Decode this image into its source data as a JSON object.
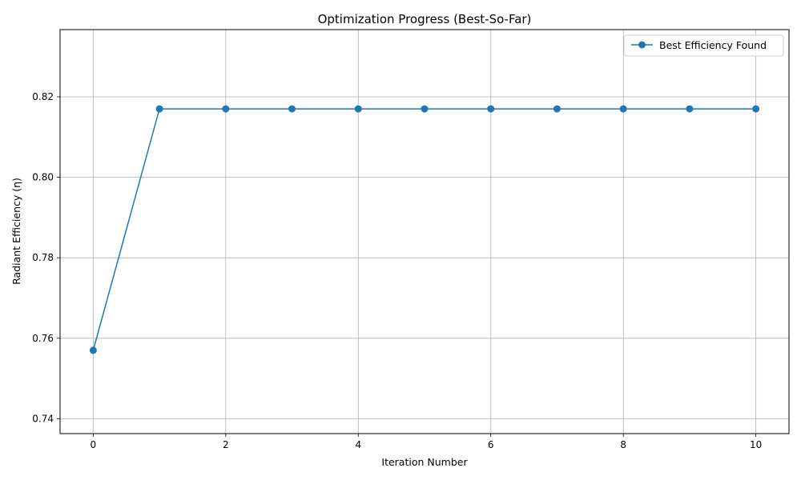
{
  "chart_data": {
    "type": "line",
    "title": "Optimization Progress (Best-So-Far)",
    "xlabel": "Iteration Number",
    "ylabel": "Radiant Efficiency (η)",
    "xlim": [
      -0.5,
      10.5
    ],
    "ylim": [
      0.7363,
      0.8367
    ],
    "xticks": [
      0,
      2,
      4,
      6,
      8,
      10
    ],
    "yticks": [
      0.74,
      0.76,
      0.78,
      0.8,
      0.82
    ],
    "xtick_labels": [
      "0",
      "2",
      "4",
      "6",
      "8",
      "10"
    ],
    "ytick_labels": [
      "0.74",
      "0.76",
      "0.78",
      "0.80",
      "0.82"
    ],
    "grid": true,
    "legend_position": "top-right",
    "series": [
      {
        "name": "Best Efficiency Found",
        "color": "#1f77b4",
        "marker": "circle",
        "x": [
          0,
          1,
          2,
          3,
          4,
          5,
          6,
          7,
          8,
          9,
          10
        ],
        "y": [
          0.757,
          0.817,
          0.817,
          0.817,
          0.817,
          0.817,
          0.817,
          0.817,
          0.817,
          0.817,
          0.817
        ]
      }
    ]
  }
}
